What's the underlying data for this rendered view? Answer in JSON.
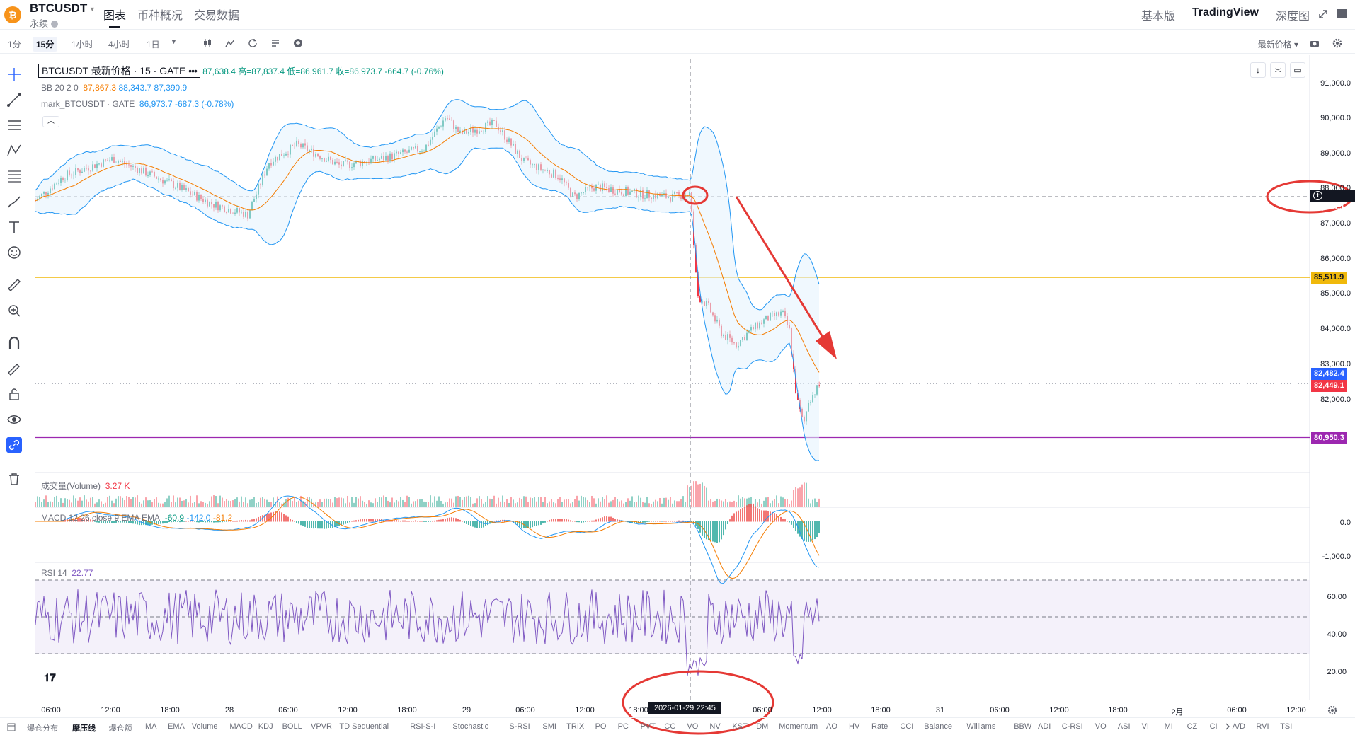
{
  "header": {
    "symbol": "BTCUSDT",
    "subtitle": "永续",
    "tabs": [
      "图表",
      "币种概况",
      "交易数据"
    ],
    "right_tabs": [
      "基本版",
      "TradingView",
      "深度图"
    ]
  },
  "toolbar": {
    "timeframes": [
      "1分",
      "15分",
      "1小时",
      "4小时",
      "1日"
    ],
    "active_timeframe": "15分",
    "price_type": "最新价格"
  },
  "legend": {
    "title": "BTCUSDT 最新价格 · 15 · GATE",
    "ohlc": "87,638.4 高=87,837.4 低=86,961.7 收=86,973.7 -664.7 (-0.76%)",
    "bb_name": "BB 20 2 0",
    "bb_values": [
      "87,867.3",
      "88,343.7",
      "87,390.9"
    ],
    "mark_name": "mark_BTCUSDT · GATE",
    "mark_value": "86,973.7",
    "mark_change": "-687.3 (-0.78%)",
    "volume_name": "成交量(Volume)",
    "volume_value": "3.27 K",
    "macd_name": "MACD 12 26 close 9 EMA EMA",
    "macd_values": [
      "-60.9",
      "-142.0",
      "-81.2"
    ],
    "rsi_name": "RSI 14",
    "rsi_value": "22.77"
  },
  "price_axis": [
    "91,000.0",
    "90,000.0",
    "89,000.0",
    "88,000.0",
    "87,000.0",
    "86,000.0",
    "85,000.0",
    "84,000.0",
    "83,000.0",
    "82,000.0"
  ],
  "price_labels": {
    "crosshair": "87,826.9",
    "level_yellow": "85,511.9",
    "mark": "82,482.4",
    "last": "82,449.1",
    "level_purple": "80,950.3"
  },
  "macd_axis": [
    "0.0",
    "-1,000.0"
  ],
  "rsi_axis": [
    "60.00",
    "40.00",
    "20.00"
  ],
  "time_axis": [
    "06:00",
    "12:00",
    "18:00",
    "28",
    "06:00",
    "12:00",
    "18:00",
    "29",
    "06:00",
    "12:00",
    "18:00",
    "06:00",
    "12:00",
    "18:00",
    "31",
    "06:00",
    "12:00",
    "18:00",
    "2月",
    "06:00",
    "12:00"
  ],
  "cursor_date": "2026-01-29  22:45",
  "indicators": [
    "爆仓分布",
    "摩压线",
    "爆仓额",
    "MA",
    "EMA",
    "Volume",
    "MACD",
    "KDJ",
    "BOLL",
    "VPVR",
    "TD Sequential",
    "RSI-S-I",
    "Stochastic",
    "S-RSI",
    "SMI",
    "TRIX",
    "PO",
    "PC",
    "PVT",
    "CC",
    "VO",
    "NV",
    "KST",
    "DM",
    "Momentum",
    "AO",
    "HV",
    "Rate",
    "CCI",
    "Balance",
    "Williams",
    "BBW",
    "ADI",
    "C-RSI",
    "VO",
    "ASI",
    "VI",
    "MI",
    "CZ",
    "CI",
    "A/D",
    "RVI",
    "TSI"
  ],
  "active_indicator": "摩压线",
  "colors": {
    "up": "#089981",
    "down": "#f23645",
    "bb_band": "#2196f3",
    "bb_mid": "#f57c00",
    "level_yellow": "#f0b90b",
    "level_purple": "#9c27b0",
    "rsi": "#7e57c2",
    "annotation": "#e53935"
  }
}
